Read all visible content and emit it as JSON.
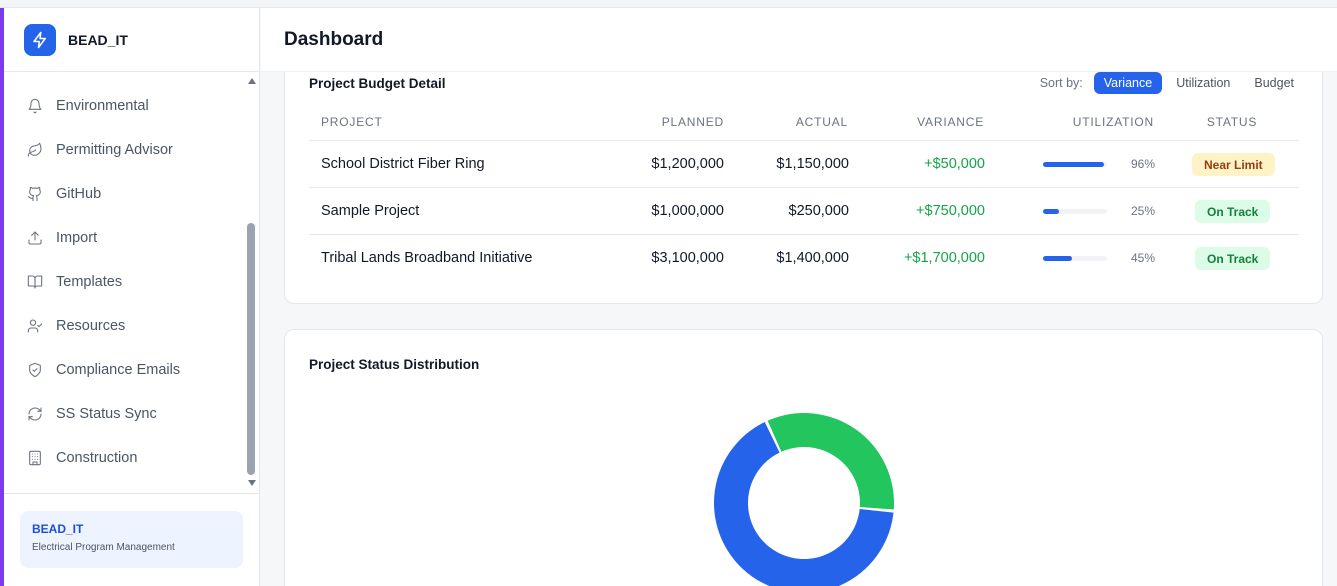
{
  "brand": {
    "name": "BEAD_IT",
    "logo_icon": "lightning-icon",
    "color": "#2563eb"
  },
  "sidebar": {
    "items": [
      {
        "label": "Environmental",
        "icon": "bell-icon"
      },
      {
        "label": "Permitting Advisor",
        "icon": "leaf-icon"
      },
      {
        "label": "GitHub",
        "icon": "github-icon"
      },
      {
        "label": "Import",
        "icon": "upload-icon"
      },
      {
        "label": "Templates",
        "icon": "book-open-icon"
      },
      {
        "label": "Resources",
        "icon": "user-check-icon"
      },
      {
        "label": "Compliance Emails",
        "icon": "shield-check-icon"
      },
      {
        "label": "SS Status Sync",
        "icon": "refresh-icon"
      },
      {
        "label": "Construction",
        "icon": "building-icon"
      }
    ],
    "footer": {
      "title": "BEAD_IT",
      "subtitle": "Electrical Program Management"
    }
  },
  "header": {
    "title": "Dashboard"
  },
  "budget": {
    "title": "Project Budget Detail",
    "sort_label": "Sort by:",
    "sort_options": [
      "Variance",
      "Utilization",
      "Budget"
    ],
    "sort_active": "Variance",
    "columns": [
      "PROJECT",
      "PLANNED",
      "ACTUAL",
      "VARIANCE",
      "UTILIZATION",
      "STATUS"
    ],
    "rows": [
      {
        "project": "School District Fiber Ring",
        "planned": "$1,200,000",
        "actual": "$1,150,000",
        "variance": "+$50,000",
        "utilization": 96,
        "utilization_label": "96%",
        "status": "Near Limit",
        "status_bg": "#fef3c7",
        "status_color": "#92400e"
      },
      {
        "project": "Sample Project",
        "planned": "$1,000,000",
        "actual": "$250,000",
        "variance": "+$750,000",
        "utilization": 25,
        "utilization_label": "25%",
        "status": "On Track",
        "status_bg": "#dcfce7",
        "status_color": "#15803d"
      },
      {
        "project": "Tribal Lands Broadband Initiative",
        "planned": "$3,100,000",
        "actual": "$1,400,000",
        "variance": "+$1,700,000",
        "utilization": 45,
        "utilization_label": "45%",
        "status": "On Track",
        "status_bg": "#dcfce7",
        "status_color": "#15803d"
      }
    ]
  },
  "status_distribution": {
    "title": "Project Status Distribution",
    "chart_data": {
      "type": "pie",
      "slices": [
        {
          "value": 2,
          "color": "#2563eb"
        },
        {
          "value": 1,
          "color": "#22c55e"
        }
      ]
    }
  }
}
